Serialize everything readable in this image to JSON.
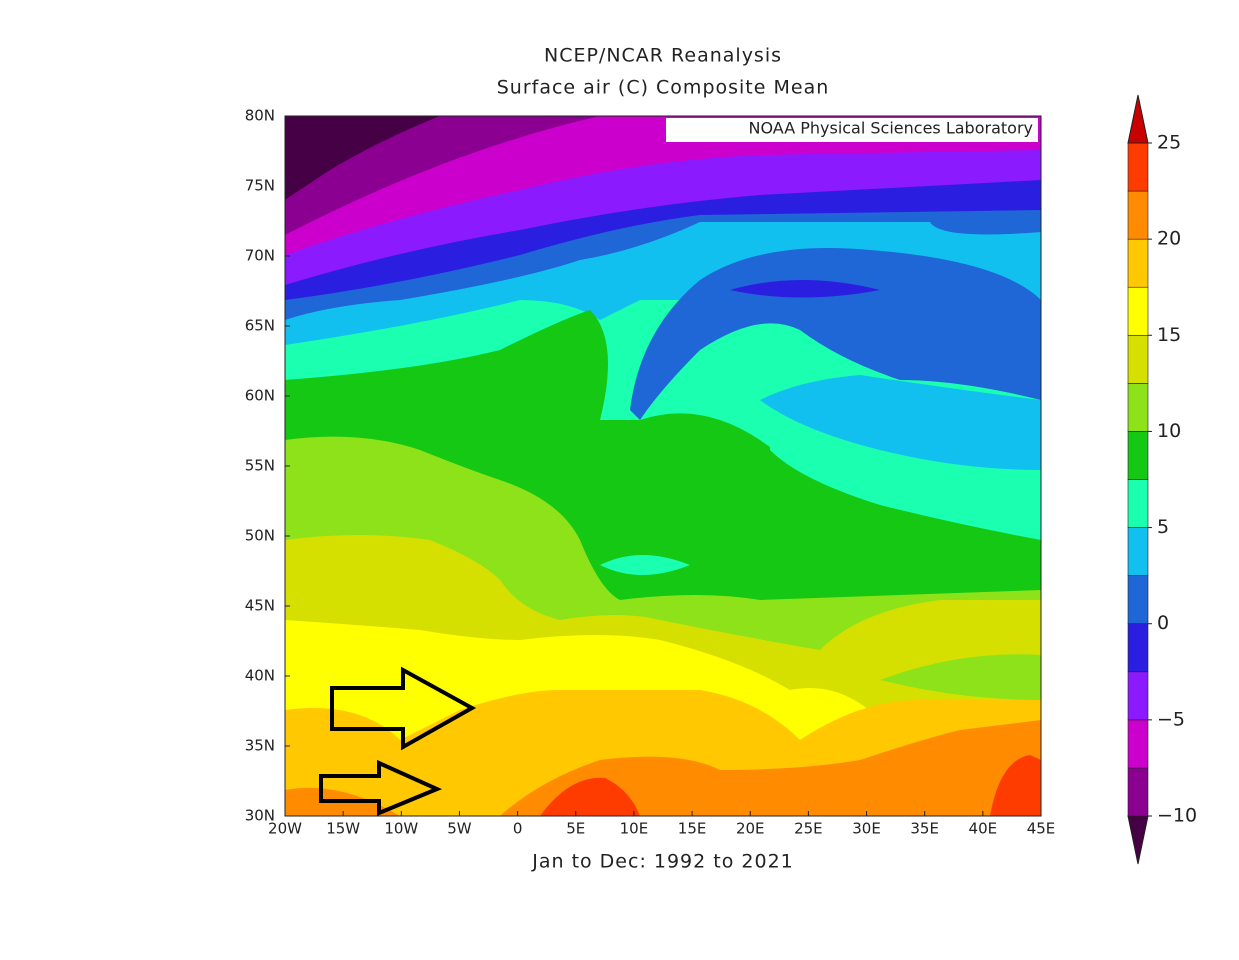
{
  "map": {
    "title": [
      "NCEP/NCAR Reanalysis",
      "Surface air (C) Composite Mean"
    ],
    "credit": "NOAA Physical Sciences Laboratory",
    "subtitle": "Jan to Dec: 1992 to 2021",
    "xlim": [
      -20,
      45
    ],
    "xticks": [
      {
        "value": -20,
        "label": "20W"
      },
      {
        "value": -15,
        "label": "15W"
      },
      {
        "value": -10,
        "label": "10W"
      },
      {
        "value": -5,
        "label": "5W"
      },
      0,
      {
        "value": 5,
        "label": "5E"
      },
      {
        "value": 10,
        "label": "10E"
      },
      {
        "value": 15,
        "label": "15E"
      },
      {
        "value": 20,
        "label": "20E"
      },
      {
        "value": 25,
        "label": "25E"
      },
      {
        "value": 30,
        "label": "30E"
      },
      {
        "value": 35,
        "label": "35E"
      },
      {
        "value": 40,
        "label": "40E"
      },
      {
        "value": 45,
        "label": "45E"
      }
    ],
    "ylim": [
      30,
      80
    ],
    "yticks": [
      {
        "value": 30,
        "label": "30N"
      },
      {
        "value": 35,
        "label": "35N"
      },
      {
        "value": 40,
        "label": "40N"
      },
      {
        "value": 45,
        "label": "45N"
      },
      {
        "value": 50,
        "label": "50N"
      },
      {
        "value": 55,
        "label": "55N"
      },
      {
        "value": 60,
        "label": "60N"
      },
      {
        "value": 65,
        "label": "65N"
      },
      {
        "value": 70,
        "label": "70N"
      },
      {
        "value": 75,
        "label": "75N"
      },
      {
        "value": 80,
        "label": "80N"
      }
    ],
    "colorbar": {
      "clim": [
        -10,
        25
      ],
      "ticks": [
        {
          "value": -10,
          "label": "−10"
        },
        {
          "value": -5,
          "label": "−5"
        },
        0,
        5,
        10,
        15,
        20,
        25
      ],
      "colors": [
        "#460046",
        "#8c0091",
        "#cc00cc",
        "#8c1aff",
        "#2a1fe0",
        "#1f66d6",
        "#12c0f0",
        "#1affb0",
        "#14c814",
        "#8ee21a",
        "#d6e000",
        "#ffff00",
        "#ffc800",
        "#ff8c00",
        "#ff3c00",
        "#c80000"
      ]
    }
  }
}
